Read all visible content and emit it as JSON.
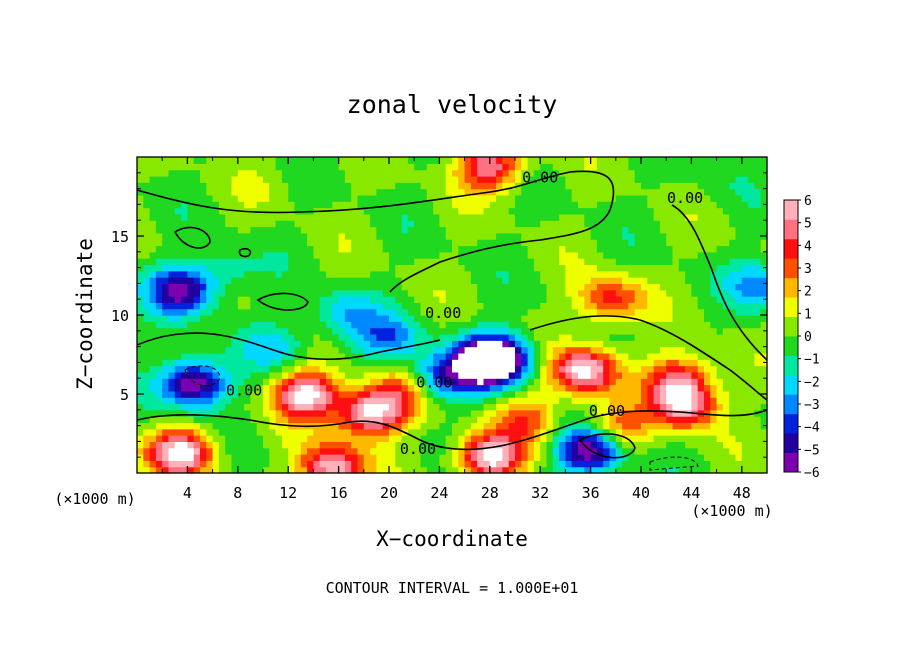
{
  "chart_data": {
    "type": "heatmap",
    "title": "zonal velocity",
    "xlabel": "X−coordinate",
    "ylabel": "Z−coordinate",
    "x_unit": "(×1000 m)",
    "y_unit": "(×1000 m)",
    "footer": "CONTOUR INTERVAL = 1.000E+01",
    "xlim": [
      0,
      50
    ],
    "ylim": [
      0,
      20
    ],
    "x_ticks": [
      "4",
      "8",
      "12",
      "16",
      "20",
      "24",
      "28",
      "32",
      "36",
      "40",
      "44",
      "48"
    ],
    "y_ticks": [
      "5",
      "10",
      "15"
    ],
    "colorbar_ticks": [
      "6",
      "5",
      "4",
      "3",
      "2",
      "1",
      "0",
      "−1",
      "−2",
      "−3",
      "−4",
      "−5",
      "−6"
    ],
    "contour_labels": [
      {
        "text": "0.00",
        "x": 32,
        "y": 18.4
      },
      {
        "text": "0.00",
        "x": 43.5,
        "y": 17.1
      },
      {
        "text": "0.00",
        "x": 24.3,
        "y": 9.8
      },
      {
        "text": "0.00",
        "x": 23.6,
        "y": 5.4
      },
      {
        "text": "0.00",
        "x": 8.5,
        "y": 4.9
      },
      {
        "text": "0.00",
        "x": 37.3,
        "y": 3.6
      },
      {
        "text": "0.00",
        "x": 22.3,
        "y": 1.2
      }
    ],
    "colors": [
      "#7a00b0",
      "#2200a0",
      "#0022dd",
      "#0088ff",
      "#00d8ff",
      "#00e8a0",
      "#20d820",
      "#88e800",
      "#f0ff00",
      "#ffb800",
      "#ff5000",
      "#ff1010",
      "#ff7080",
      "#ffb0b8"
    ],
    "field_features": [
      {
        "x": 4.5,
        "y": 5.7,
        "value": -6.5
      },
      {
        "x": 3.5,
        "y": 11.6,
        "value": -5.5
      },
      {
        "x": 7.0,
        "y": 12.8,
        "value": -1.5
      },
      {
        "x": 13.5,
        "y": 5.0,
        "value": 6.5
      },
      {
        "x": 18.5,
        "y": 3.8,
        "value": 6.5
      },
      {
        "x": 21.0,
        "y": 5.2,
        "value": 3.0
      },
      {
        "x": 24.0,
        "y": 6.0,
        "value": -4.0
      },
      {
        "x": 27.5,
        "y": 7.0,
        "value": -6.5
      },
      {
        "x": 29.0,
        "y": 7.3,
        "value": -5.0
      },
      {
        "x": 35.5,
        "y": 6.5,
        "value": 6.5
      },
      {
        "x": 37.5,
        "y": 11.0,
        "value": 4.0
      },
      {
        "x": 43.0,
        "y": 6.0,
        "value": 4.5
      },
      {
        "x": 43.5,
        "y": 4.3,
        "value": 5.5
      },
      {
        "x": 49.5,
        "y": 12.0,
        "value": -3.0
      },
      {
        "x": 3.5,
        "y": 1.3,
        "value": 6.5
      },
      {
        "x": 15.5,
        "y": 0.4,
        "value": 6.0
      },
      {
        "x": 28.0,
        "y": 1.0,
        "value": 6.5
      },
      {
        "x": 36.0,
        "y": 1.5,
        "value": -6.5
      },
      {
        "x": 31.0,
        "y": 3.5,
        "value": 3.0
      },
      {
        "x": 28.0,
        "y": 19.4,
        "value": 5.0
      },
      {
        "x": 20.0,
        "y": 8.5,
        "value": -3.0
      },
      {
        "x": 16.5,
        "y": 10.0,
        "value": -2.5
      },
      {
        "x": 11.0,
        "y": 8.0,
        "value": -2.0
      },
      {
        "x": 10.0,
        "y": 18.5,
        "value": 0.5
      },
      {
        "x": 46.0,
        "y": 19.0,
        "value": -0.5
      },
      {
        "x": 38.0,
        "y": 2.8,
        "value": 3.5
      }
    ]
  }
}
